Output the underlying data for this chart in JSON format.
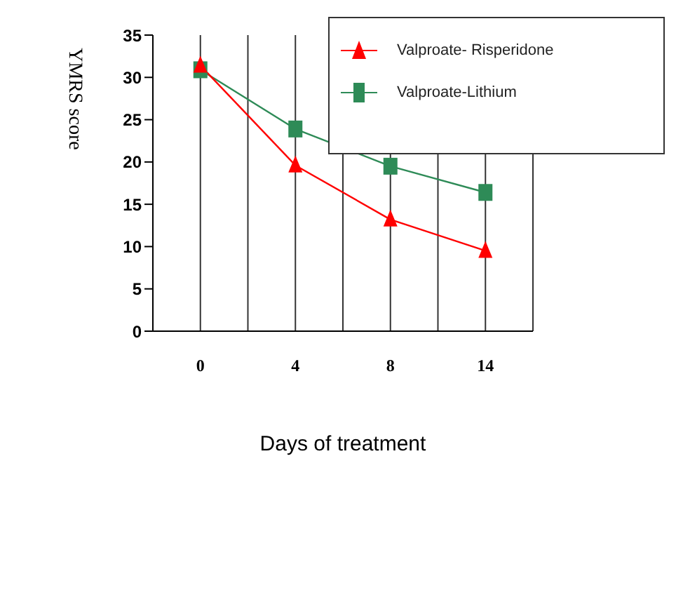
{
  "chart_data": {
    "type": "line",
    "xlabel": "Days of treatment",
    "ylabel": "YMRS score",
    "categories": [
      "0",
      "4",
      "8",
      "14"
    ],
    "series": [
      {
        "name": "Valproate- Risperidone",
        "color": "#ff0000",
        "marker": "triangle",
        "values": [
          31.4,
          19.6,
          13.2,
          9.5
        ]
      },
      {
        "name": "Valproate-Lithium",
        "color": "#2e8b57",
        "marker": "square",
        "values": [
          30.9,
          23.9,
          19.5,
          16.4
        ]
      }
    ],
    "ylim": [
      0,
      35
    ],
    "yticks": [
      0,
      5,
      10,
      15,
      20,
      25,
      30,
      35
    ],
    "grid": "x",
    "legend": "top right"
  }
}
